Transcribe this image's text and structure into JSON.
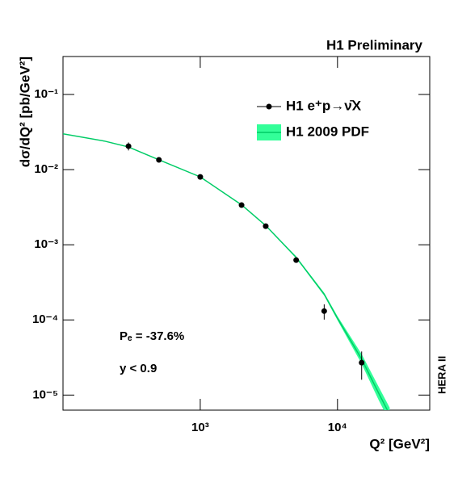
{
  "chart_data": {
    "type": "scatter",
    "title": "H1 Preliminary",
    "xlabel": "Q² [GeV²]",
    "ylabel": "dσ/dQ² [pb/GeV²]",
    "annotations": [
      "Pₑ = -37.6%",
      "y < 0.9",
      "HERA II"
    ],
    "xlog": true,
    "ylog": true,
    "xlim": [
      100,
      47000
    ],
    "ylim": [
      6.3e-06,
      0.32
    ],
    "xticks": [
      {
        "value": 1000,
        "label": "10³"
      },
      {
        "value": 10000,
        "label": "10⁴"
      }
    ],
    "yticks": [
      {
        "value": 1e-05,
        "label": "10⁻⁵"
      },
      {
        "value": 0.0001,
        "label": "10⁻⁴"
      },
      {
        "value": 0.001,
        "label": "10⁻³"
      },
      {
        "value": 0.01,
        "label": "10⁻²"
      },
      {
        "value": 0.1,
        "label": "10⁻¹"
      }
    ],
    "legend": "top-right",
    "series": [
      {
        "name": "H1 e⁺p→ν̄X",
        "color": "#000000",
        "x": [
          300,
          500,
          1000,
          2000,
          3000,
          5000,
          8000,
          15000
        ],
        "values": [
          0.0205,
          0.0135,
          0.008,
          0.00337,
          0.00177,
          0.000625,
          0.000131,
          2.7e-05
        ],
        "errors": [
          0.0025,
          0.0007,
          0.0004,
          0.00015,
          0.0001,
          5e-05,
          3e-05,
          1.1e-05
        ]
      },
      {
        "name": "H1 2009 PDF",
        "color": "#00cc66",
        "band_color": "#33ff99",
        "x": [
          100,
          200,
          300,
          500,
          1000,
          2000,
          3000,
          5000,
          8000,
          10000,
          15000,
          20000,
          24000
        ],
        "values": [
          0.03,
          0.024,
          0.02,
          0.0135,
          0.008,
          0.0034,
          0.0018,
          0.00068,
          0.00022,
          0.000105,
          3e-05,
          1.05e-05,
          5.5e-06
        ],
        "low": [
          0.0298,
          0.0238,
          0.0199,
          0.0134,
          0.00795,
          0.00336,
          0.00177,
          0.00066,
          0.00021,
          9.9e-05,
          2.6e-05,
          8.5e-06,
          4.4e-06
        ],
        "high": [
          0.0302,
          0.0242,
          0.0201,
          0.0136,
          0.00805,
          0.00344,
          0.00183,
          0.0007,
          0.00023,
          0.000112,
          3.5e-05,
          1.28e-05,
          6.8e-06
        ]
      }
    ]
  }
}
